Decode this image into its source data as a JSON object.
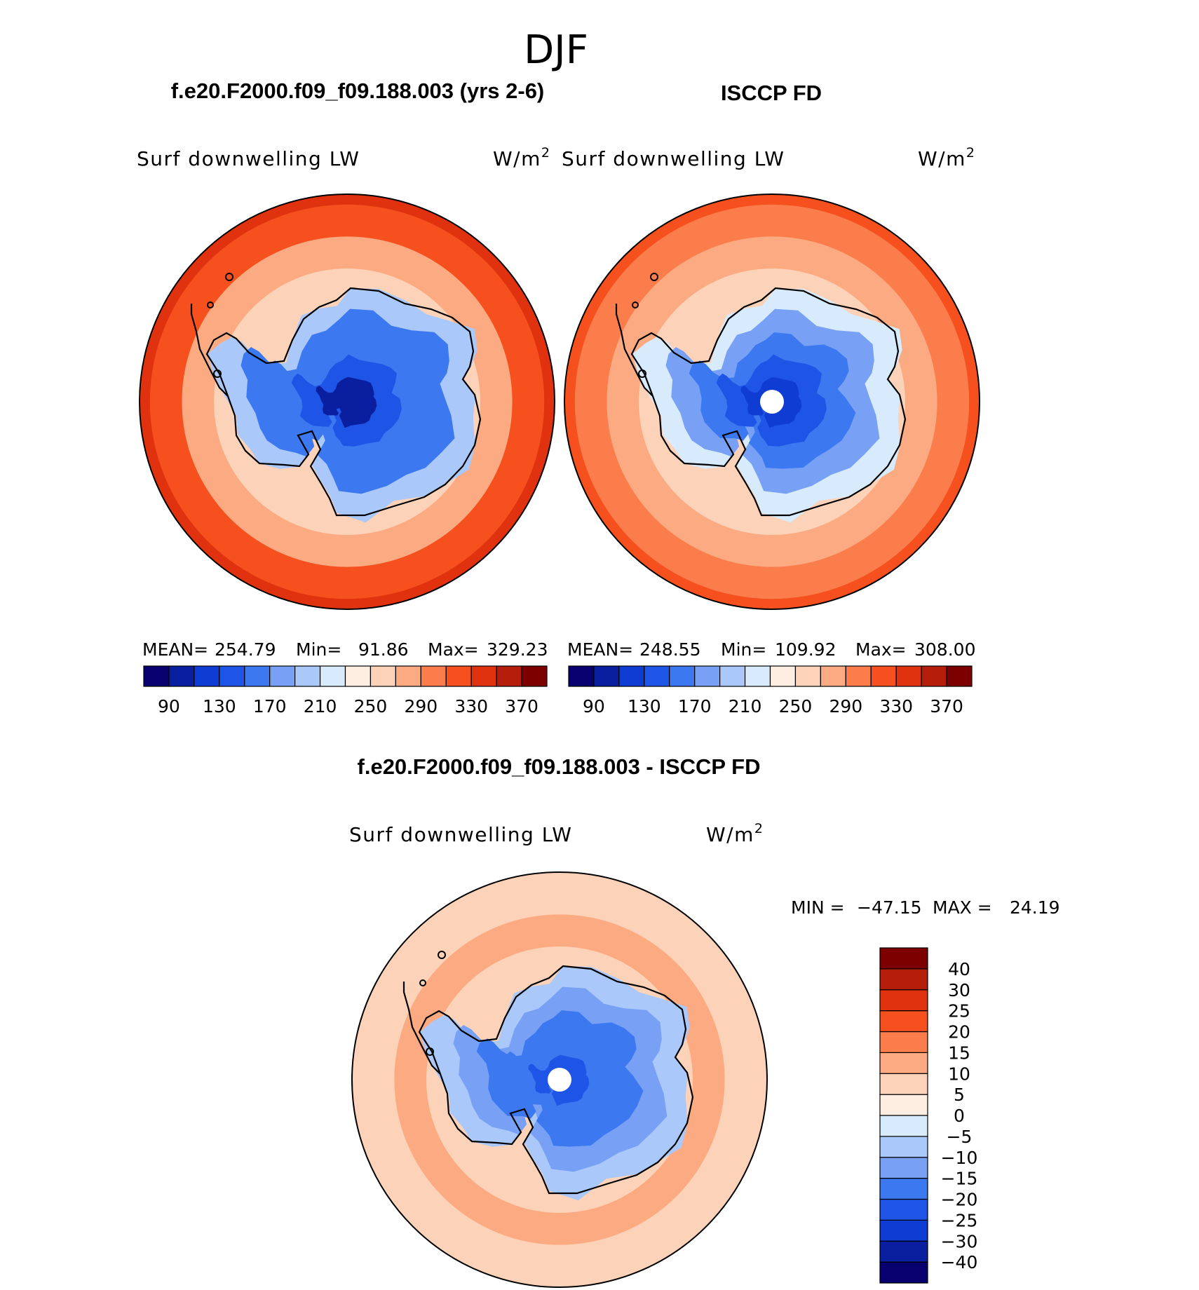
{
  "super_title": "DJF",
  "colors": {
    "abs_palette": [
      "#08006e",
      "#0a1ea0",
      "#0f3cd2",
      "#1e55e6",
      "#3c78f0",
      "#78a0f5",
      "#aac8fa",
      "#d7ebfc",
      "#feeee1",
      "#fcd2b9",
      "#fcaa82",
      "#fa7d4b",
      "#f5501e",
      "#e1320f",
      "#b41e0a",
      "#7d0000"
    ],
    "diff_palette": [
      "#08006e",
      "#0a1ea0",
      "#0f3cd2",
      "#1e55e6",
      "#3c78f0",
      "#78a0f5",
      "#aac8fa",
      "#d7ebfc",
      "#feeee1",
      "#fcd2b9",
      "#fcaa82",
      "#fa7d4b",
      "#f5501e",
      "#e1320f",
      "#b41e0a",
      "#7d0000"
    ],
    "missing": "#ffffff"
  },
  "chart_data": [
    {
      "type": "heatmap",
      "projection": "south polar stereographic",
      "title": "f.e20.F2000.f09_f09.188.003 (yrs 2-6)",
      "variable": "Surf downwelling LW",
      "units": "W/m",
      "units_sup": "2",
      "stats": {
        "mean_label": "MEAN=",
        "mean": "254.79",
        "min_label": "Min=",
        "min": "91.86",
        "max_label": "Max=",
        "max": "329.23"
      },
      "colorbar": {
        "orientation": "horizontal",
        "levels": [
          90,
          110,
          130,
          150,
          170,
          190,
          210,
          230,
          250,
          270,
          290,
          310,
          330,
          350,
          370
        ],
        "tick_labels": [
          "90",
          "130",
          "170",
          "210",
          "250",
          "290",
          "330",
          "370"
        ]
      },
      "field": {
        "pole": 100,
        "coast": 200,
        "ocean_near": 255,
        "ocean_mid": 285,
        "ocean_far": 312,
        "ocean_edge": 330
      }
    },
    {
      "type": "heatmap",
      "projection": "south polar stereographic",
      "title": "ISCCP FD",
      "variable": "Surf downwelling LW",
      "units": "W/m",
      "units_sup": "2",
      "stats": {
        "mean_label": "MEAN=",
        "mean": "248.55",
        "min_label": "Min=",
        "min": "109.92",
        "max_label": "Max=",
        "max": "308.00"
      },
      "colorbar": {
        "orientation": "horizontal",
        "levels": [
          90,
          110,
          130,
          150,
          170,
          190,
          210,
          230,
          250,
          270,
          290,
          310,
          330,
          350,
          370
        ],
        "tick_labels": [
          "90",
          "130",
          "170",
          "210",
          "250",
          "290",
          "330",
          "370"
        ]
      },
      "field": {
        "pole": 115,
        "coast": 210,
        "ocean_near": 250,
        "ocean_mid": 280,
        "ocean_far": 300,
        "ocean_edge": 310
      },
      "missing_at_pole": true
    },
    {
      "type": "heatmap",
      "projection": "south polar stereographic",
      "title": "f.e20.F2000.f09_f09.188.003 - ISCCP FD",
      "variable": "Surf downwelling LW",
      "units": "W/m",
      "units_sup": "2",
      "stats": {
        "min_label": "MIN =",
        "min": "−47.15",
        "max_label": "MAX =",
        "max": "24.19"
      },
      "colorbar": {
        "orientation": "vertical",
        "levels": [
          -40,
          -30,
          -25,
          -20,
          -15,
          -10,
          -5,
          0,
          5,
          10,
          15,
          20,
          25,
          30,
          40
        ],
        "tick_labels": [
          "−40",
          "−30",
          "−25",
          "−20",
          "−15",
          "−10",
          "−5",
          "0",
          "5",
          "10",
          "15",
          "20",
          "25",
          "30",
          "40"
        ]
      },
      "field": {
        "pole": -25,
        "coast": -10,
        "ocean_near": 8,
        "ocean_mid": 12,
        "ocean_far": 7,
        "ocean_edge": 6
      },
      "missing_at_pole": true
    }
  ]
}
